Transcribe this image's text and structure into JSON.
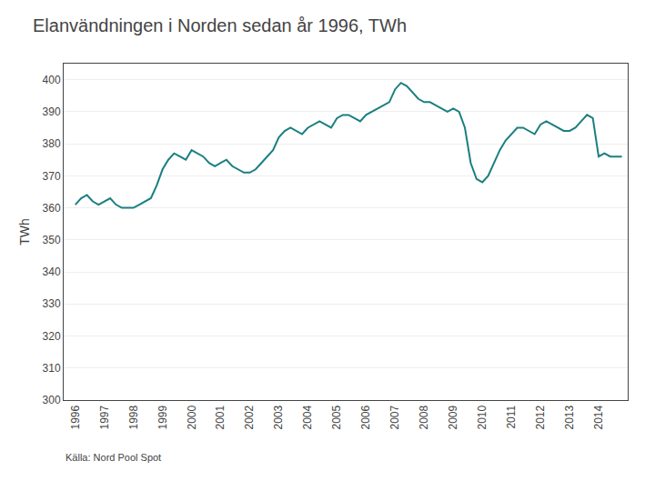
{
  "chart_data": {
    "type": "line",
    "title": "Elanvändningen i Norden sedan år 1996, TWh",
    "ylabel": "TWh",
    "annotations": [
      "Källa: Nord Pool Spot"
    ],
    "color": "#1a7f80",
    "grid": true,
    "xlim": [
      1995.6,
      2015.0
    ],
    "xticks": [
      1996,
      1997,
      1998,
      1999,
      2000,
      2001,
      2002,
      2003,
      2004,
      2005,
      2006,
      2007,
      2008,
      2009,
      2010,
      2011,
      2012,
      2013,
      2014
    ],
    "ylim": [
      300,
      405
    ],
    "yticks": [
      300,
      310,
      320,
      330,
      340,
      350,
      360,
      370,
      380,
      390,
      400
    ],
    "x": [
      1996.0,
      1996.2,
      1996.4,
      1996.6,
      1996.8,
      1997.0,
      1997.2,
      1997.4,
      1997.6,
      1997.8,
      1998.0,
      1998.2,
      1998.4,
      1998.6,
      1998.8,
      1999.0,
      1999.2,
      1999.4,
      1999.6,
      1999.8,
      2000.0,
      2000.2,
      2000.4,
      2000.6,
      2000.8,
      2001.0,
      2001.2,
      2001.4,
      2001.6,
      2001.8,
      2002.0,
      2002.2,
      2002.4,
      2002.6,
      2002.8,
      2003.0,
      2003.2,
      2003.4,
      2003.6,
      2003.8,
      2004.0,
      2004.2,
      2004.4,
      2004.6,
      2004.8,
      2005.0,
      2005.2,
      2005.4,
      2005.6,
      2005.8,
      2006.0,
      2006.2,
      2006.4,
      2006.6,
      2006.8,
      2007.0,
      2007.2,
      2007.4,
      2007.6,
      2007.8,
      2008.0,
      2008.2,
      2008.4,
      2008.6,
      2008.8,
      2009.0,
      2009.2,
      2009.4,
      2009.6,
      2009.8,
      2010.0,
      2010.2,
      2010.4,
      2010.6,
      2010.8,
      2011.0,
      2011.2,
      2011.4,
      2011.6,
      2011.8,
      2012.0,
      2012.2,
      2012.4,
      2012.6,
      2012.8,
      2013.0,
      2013.2,
      2013.4,
      2013.6,
      2013.8,
      2014.0,
      2014.2,
      2014.4,
      2014.6,
      2014.8
    ],
    "values": [
      361,
      363,
      364,
      362,
      361,
      362,
      363,
      361,
      360,
      360,
      360,
      361,
      362,
      363,
      367,
      372,
      375,
      377,
      376,
      375,
      378,
      377,
      376,
      374,
      373,
      374,
      375,
      373,
      372,
      371,
      371,
      372,
      374,
      376,
      378,
      382,
      384,
      385,
      384,
      383,
      385,
      386,
      387,
      386,
      385,
      388,
      389,
      389,
      388,
      387,
      389,
      390,
      391,
      392,
      393,
      397,
      399,
      398,
      396,
      394,
      393,
      393,
      392,
      391,
      390,
      391,
      390,
      385,
      374,
      369,
      368,
      370,
      374,
      378,
      381,
      383,
      385,
      385,
      384,
      383,
      386,
      387,
      386,
      385,
      384,
      384,
      385,
      387,
      389,
      388,
      376,
      377,
      376,
      376,
      376
    ]
  }
}
